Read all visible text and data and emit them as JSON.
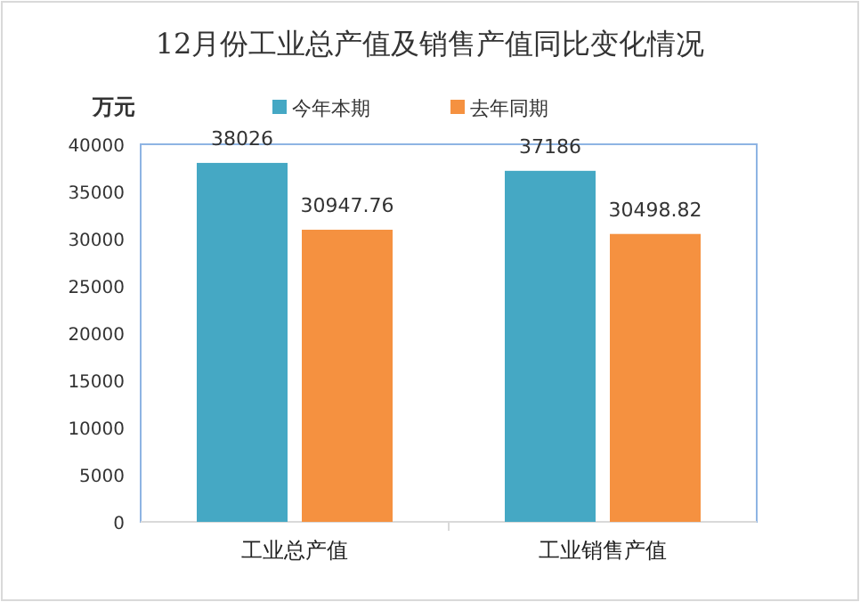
{
  "chart_data": {
    "type": "bar",
    "title": "12月份工业总产值及销售产值同比变化情况",
    "ylabel": "万元",
    "categories": [
      "工业总产值",
      "工业销售产值"
    ],
    "series": [
      {
        "name": "今年本期",
        "color": "#45a8c4",
        "values": [
          38026,
          37186
        ]
      },
      {
        "name": "去年同期",
        "color": "#f59140",
        "values": [
          30947.76,
          30498.82
        ]
      }
    ],
    "ylim": [
      0,
      40000
    ],
    "yticks": [
      0,
      5000,
      10000,
      15000,
      20000,
      25000,
      30000,
      35000,
      40000
    ],
    "data_labels": true,
    "legend": "top",
    "grid": false
  }
}
